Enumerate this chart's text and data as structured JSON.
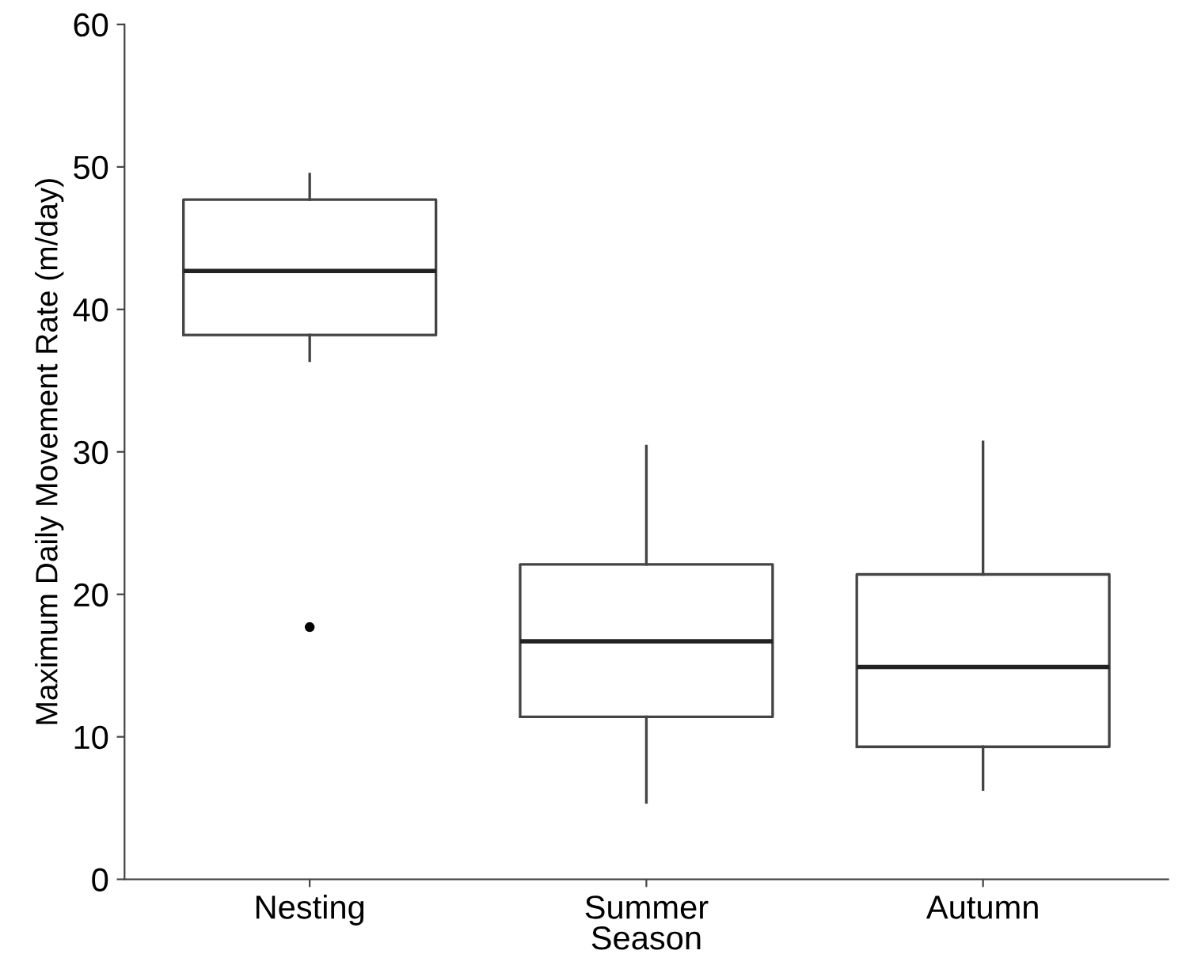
{
  "chart_data": {
    "type": "box",
    "xlabel": "Season",
    "ylabel": "Maximum Daily Movement Rate (m/day)",
    "categories": [
      "Nesting",
      "Summer",
      "Autumn"
    ],
    "boxes": [
      {
        "low": 36.4,
        "q1": 38.2,
        "median": 42.7,
        "q3": 47.7,
        "high": 49.5,
        "outliers": [
          17.7
        ]
      },
      {
        "low": 5.4,
        "q1": 11.4,
        "median": 16.7,
        "q3": 22.1,
        "high": 30.4
      },
      {
        "low": 6.3,
        "q1": 9.3,
        "median": 14.9,
        "q3": 21.4,
        "high": 30.7
      }
    ],
    "ylim": [
      0,
      60
    ],
    "yticks": [
      0,
      10,
      20,
      30,
      40,
      50,
      60
    ],
    "grid": false,
    "legend": false
  }
}
